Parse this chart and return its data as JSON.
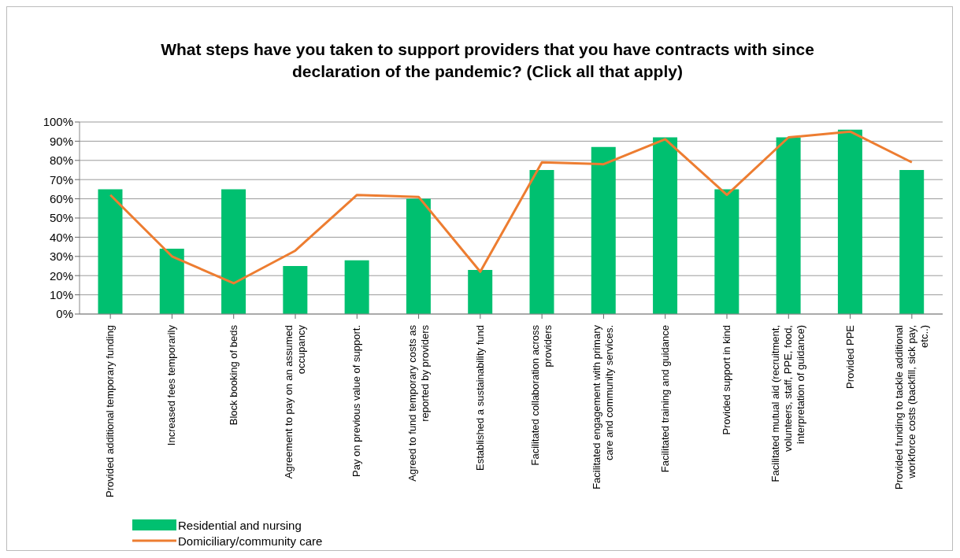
{
  "chart_data": {
    "type": "bar",
    "title": "What steps have you taken to support providers that you have contracts with since declaration of the pandemic? (Click all that apply)",
    "categories": [
      "Provided additional temporary funding",
      "Increased fees temporarily",
      "Block booking of beds",
      "Agreement to pay on an assumed occupancy",
      "Pay on previous value of support.",
      "Agreed to fund temporary costs as reported by providers",
      "Established a sustainability fund",
      "Facilitated collaboration across providers",
      "Facilitated engagement with primary care and community services.",
      "Facilitated training and guidance",
      "Provided support in kind",
      "Facilitated mutual aid (recruitment, volunteers, staff, PPE, food, interpretation of guidance)",
      "Provided PPE",
      "Provided funding to tackle additional workforce costs (backfill, sick pay, etc..)"
    ],
    "series": [
      {
        "name": "Residential and nursing",
        "color": "#00c070",
        "values": [
          65,
          34,
          65,
          25,
          28,
          60,
          23,
          75,
          87,
          92,
          65,
          92,
          96,
          75
        ]
      },
      {
        "name": "Domiciliary/community care",
        "type": "line",
        "color": "#ed7d31",
        "values": [
          62,
          30,
          16,
          33,
          62,
          61,
          22,
          79,
          78,
          91,
          62,
          92,
          95,
          79
        ]
      }
    ],
    "ylim": [
      0,
      100
    ],
    "yticks": [
      {
        "value": 0,
        "label": "0%"
      },
      {
        "value": 10,
        "label": "10%"
      },
      {
        "value": 20,
        "label": "20%"
      },
      {
        "value": 30,
        "label": "30%"
      },
      {
        "value": 40,
        "label": "40%"
      },
      {
        "value": 50,
        "label": "50%"
      },
      {
        "value": 60,
        "label": "60%"
      },
      {
        "value": 70,
        "label": "70%"
      },
      {
        "value": 80,
        "label": "80%"
      },
      {
        "value": 90,
        "label": "90%"
      },
      {
        "value": 100,
        "label": "100%"
      }
    ],
    "grid": "y",
    "legend": "bottom left"
  }
}
